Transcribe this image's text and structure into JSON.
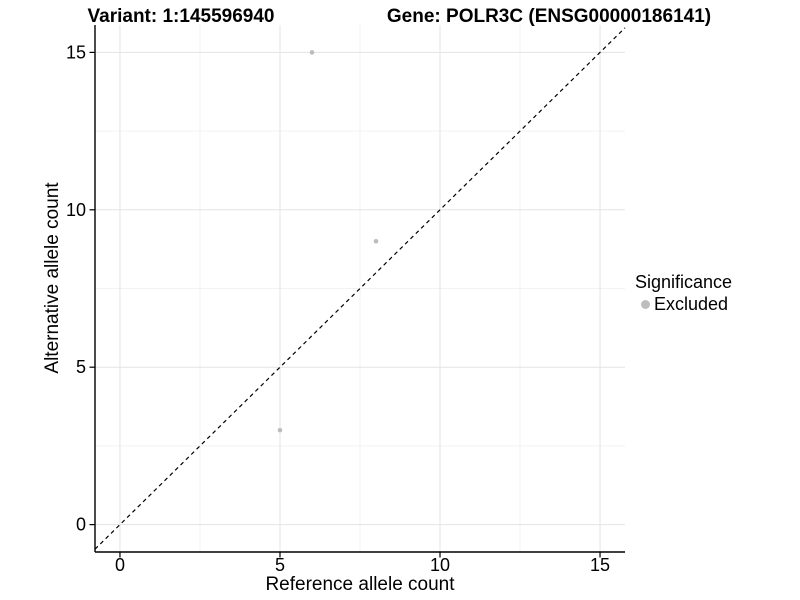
{
  "chart_data": {
    "type": "scatter",
    "title_left": "Variant: 1:145596940",
    "title_right": "Gene: POLR3C (ENSG00000186141)",
    "xlabel": "Reference allele count",
    "ylabel": "Alternative allele count",
    "xlim": [
      -0.78,
      15.78
    ],
    "ylim": [
      -0.87,
      15.87
    ],
    "xticks": [
      0,
      5,
      10,
      15
    ],
    "yticks": [
      0,
      5,
      10,
      15
    ],
    "xminor": [
      2.5,
      7.5,
      12.5
    ],
    "yminor": [
      2.5,
      7.5,
      12.5
    ],
    "grid": "major-and-minor",
    "identity_line": {
      "type": "dashed",
      "slope": 1,
      "intercept": 0,
      "color": "#000000"
    },
    "series": [
      {
        "name": "Excluded",
        "marker": "circle",
        "color": "#bdbdbd",
        "points": [
          {
            "x": 6,
            "y": 15
          },
          {
            "x": 8,
            "y": 9
          },
          {
            "x": 5,
            "y": 3
          }
        ]
      }
    ],
    "legend": {
      "title": "Significance",
      "position": "right",
      "items": [
        {
          "label": "Excluded",
          "color": "#bdbdbd",
          "marker": "circle"
        }
      ]
    }
  },
  "colors": {
    "background": "#ffffff",
    "grid_major": "#e3e3e3",
    "grid_minor": "#f2f2f2",
    "axis_line": "#000000",
    "tick_mark": "#000000",
    "tick_label": "#000000",
    "identity_line": "#000000",
    "point": "#bdbdbd"
  }
}
